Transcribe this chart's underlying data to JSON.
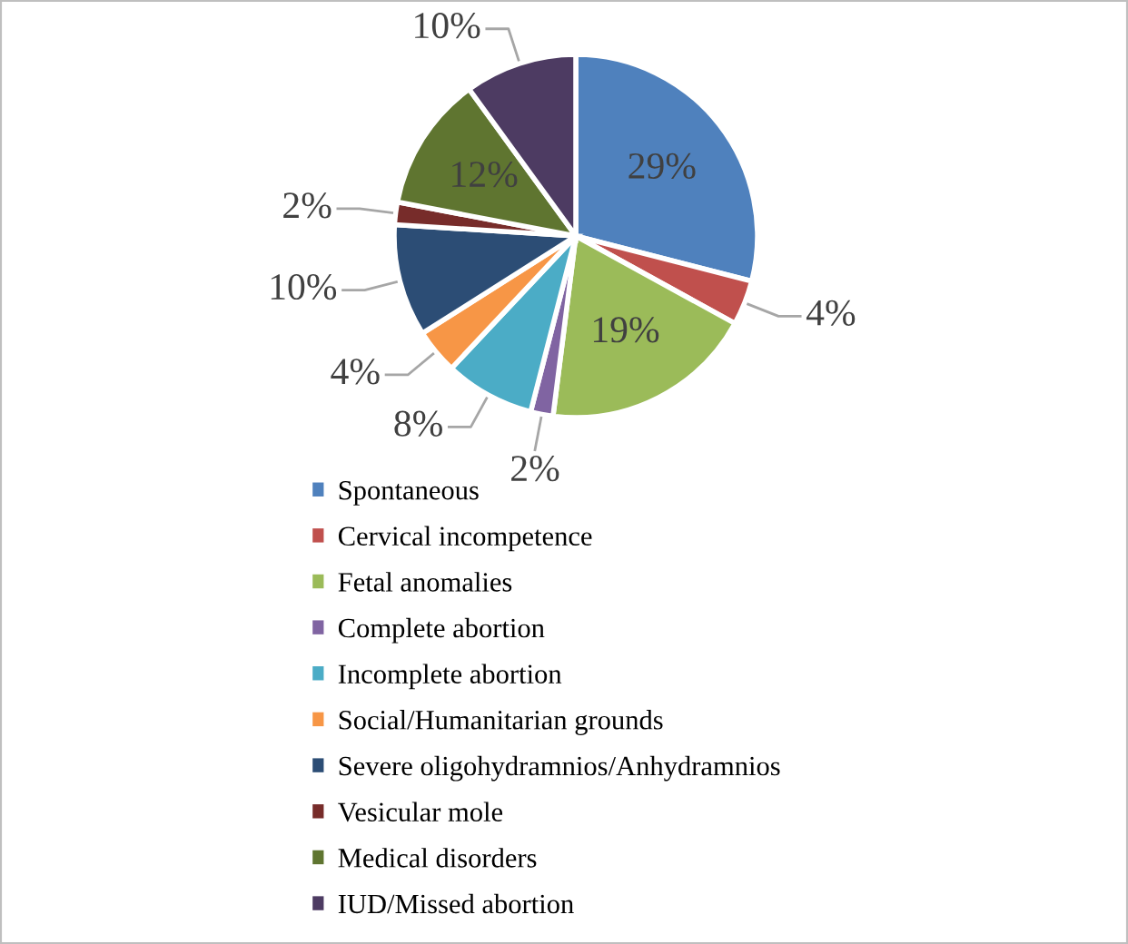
{
  "chart_data": {
    "type": "pie",
    "categories": [
      "Spontaneous",
      "Cervical incompetence",
      "Fetal anomalies",
      "Complete abortion",
      "Incomplete abortion",
      "Social/Humanitarian grounds",
      "Severe oligohydramnios/Anhydramnios",
      "Vesicular mole",
      "Medical disorders",
      "IUD/Missed abortion"
    ],
    "values": [
      29,
      4,
      19,
      2,
      8,
      4,
      10,
      2,
      12,
      10
    ],
    "value_labels": [
      "29%",
      "4%",
      "19%",
      "2%",
      "8%",
      "4%",
      "10%",
      "2%",
      "12%",
      "10%"
    ],
    "colors": [
      "#4f81bd",
      "#c0504d",
      "#9bbb59",
      "#8064a2",
      "#4bacc6",
      "#f79646",
      "#2c4d75",
      "#772c2a",
      "#5f7530",
      "#4d3b62"
    ],
    "legend": "bottom left"
  }
}
